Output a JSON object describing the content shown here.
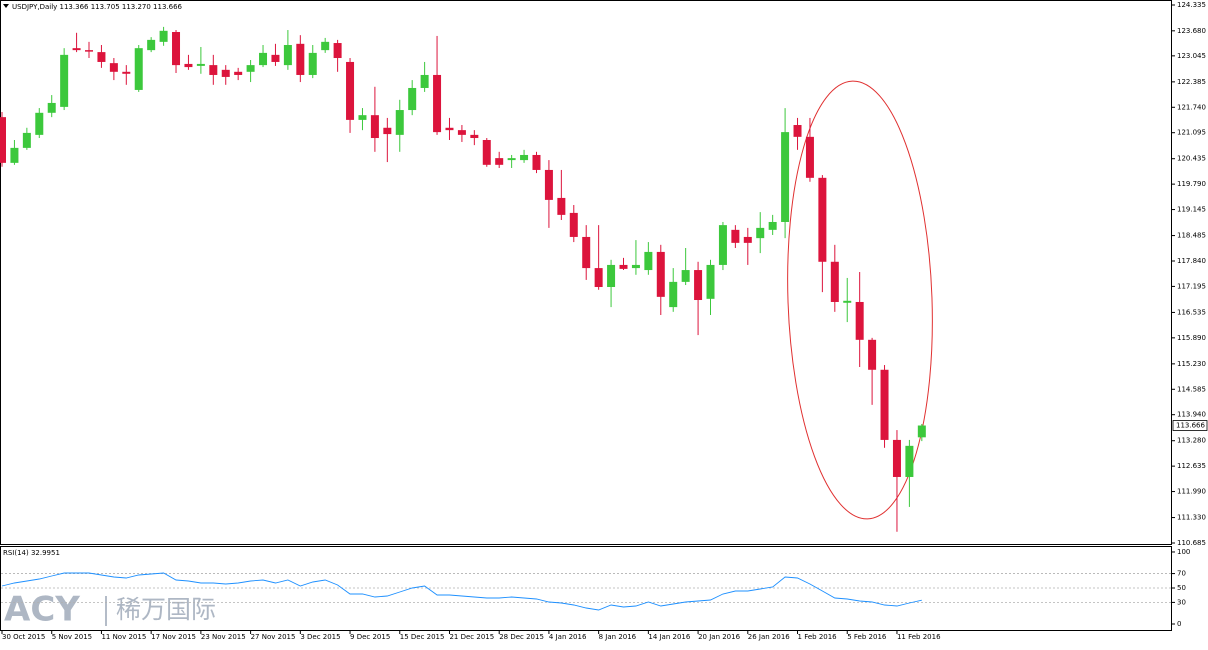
{
  "chart_data": [
    {
      "type": "candlestick",
      "title": "USDJPY,Daily  113.366 113.705 113.270 113.666",
      "up_color": "#3cc83c",
      "down_color": "#dc143c",
      "ylim": [
        110.634,
        124.462
      ],
      "yticks": [
        124.335,
        {
          "value": 123.68,
          "label": "123.680"
        },
        123.045,
        122.385,
        {
          "value": 121.74,
          "label": "121.740"
        },
        121.095,
        120.435,
        {
          "value": 119.79,
          "label": "119.790"
        },
        119.145,
        118.485,
        {
          "value": 117.84,
          "label": "117.840"
        },
        117.195,
        116.535,
        {
          "value": 115.89,
          "label": "115.890"
        },
        {
          "value": 115.23,
          "label": "115.230"
        },
        114.585,
        {
          "value": 113.94,
          "label": "113.940"
        },
        {
          "value": 113.28,
          "label": "113.280"
        },
        112.635,
        {
          "value": 111.99,
          "label": "111.990"
        },
        {
          "value": 111.33,
          "label": "111.330"
        },
        110.685
      ],
      "last_price": {
        "value": 113.666,
        "label": "113.666"
      },
      "open": [
        121.49,
        120.33,
        120.71,
        121.04,
        121.6,
        121.75,
        123.24,
        123.19,
        123.14,
        122.86,
        122.64,
        122.18,
        123.19,
        123.4,
        123.65,
        122.84,
        122.79,
        122.81,
        122.69,
        122.64,
        122.64,
        122.81,
        123.07,
        122.81,
        123.35,
        122.56,
        123.19,
        123.37,
        122.89,
        121.42,
        121.54,
        121.22,
        121.04,
        121.67,
        122.23,
        122.56,
        121.22,
        121.16,
        121.04,
        120.91,
        120.45,
        120.4,
        120.4,
        120.53,
        120.15,
        119.44,
        119.06,
        118.45,
        117.66,
        117.18,
        117.74,
        117.66,
        117.61,
        118.07,
        116.67,
        117.31,
        117.61,
        116.88,
        117.74,
        118.63,
        118.45,
        118.42,
        118.63,
        118.83,
        121.29,
        120.99,
        119.95,
        117.82,
        116.78,
        116.8,
        115.84,
        115.08,
        113.3,
        112.36,
        113.366
      ],
      "high": [
        121.62,
        120.91,
        121.22,
        121.72,
        122.05,
        123.24,
        123.63,
        123.4,
        123.32,
        122.99,
        122.81,
        123.32,
        123.52,
        123.78,
        123.7,
        123.07,
        123.27,
        123.07,
        122.81,
        122.74,
        122.94,
        123.32,
        123.35,
        123.7,
        123.57,
        123.32,
        123.5,
        123.45,
        122.99,
        121.72,
        122.26,
        121.47,
        121.93,
        122.43,
        122.89,
        123.55,
        121.47,
        121.29,
        121.16,
        120.96,
        120.61,
        120.53,
        120.66,
        120.61,
        120.4,
        120.15,
        119.26,
        118.75,
        118.75,
        117.87,
        117.92,
        118.37,
        118.32,
        118.25,
        117.66,
        118.17,
        117.82,
        117.87,
        118.83,
        118.75,
        118.68,
        119.08,
        119.01,
        121.72,
        121.47,
        121.47,
        120.02,
        118.25,
        117.41,
        117.56,
        115.89,
        115.2,
        113.55,
        113.3,
        113.705
      ],
      "low": [
        120.23,
        120.28,
        120.66,
        120.96,
        121.49,
        121.67,
        123.14,
        122.99,
        122.74,
        122.43,
        122.31,
        122.13,
        123.14,
        123.3,
        122.61,
        122.69,
        122.59,
        122.31,
        122.31,
        122.43,
        122.38,
        122.76,
        122.79,
        122.69,
        122.38,
        122.48,
        123.12,
        122.64,
        121.09,
        121.16,
        120.61,
        120.35,
        120.61,
        121.54,
        122.13,
        121.04,
        120.91,
        120.86,
        120.78,
        120.23,
        120.2,
        120.2,
        120.33,
        120.07,
        118.68,
        118.88,
        118.32,
        117.36,
        117.11,
        116.67,
        117.61,
        117.49,
        117.49,
        116.47,
        116.55,
        117.23,
        115.96,
        116.47,
        117.61,
        118.17,
        117.74,
        118.04,
        118.5,
        118.42,
        120.66,
        119.85,
        117.05,
        116.55,
        116.29,
        115.15,
        114.19,
        113.1,
        110.97,
        111.6,
        113.27
      ],
      "close": [
        120.33,
        120.71,
        121.09,
        121.6,
        121.85,
        123.07,
        123.19,
        123.17,
        122.89,
        122.64,
        122.59,
        123.24,
        123.45,
        123.68,
        122.81,
        122.76,
        122.84,
        122.56,
        122.51,
        122.56,
        122.81,
        123.12,
        122.89,
        123.32,
        122.56,
        123.12,
        123.4,
        122.99,
        121.42,
        121.54,
        120.96,
        121.06,
        121.67,
        122.23,
        122.56,
        121.11,
        121.16,
        121.04,
        120.96,
        120.28,
        120.28,
        120.45,
        120.53,
        120.15,
        119.39,
        119.01,
        118.45,
        117.66,
        117.18,
        117.74,
        117.64,
        117.74,
        118.07,
        116.93,
        117.31,
        117.61,
        116.85,
        117.74,
        118.75,
        118.3,
        118.3,
        118.68,
        118.83,
        121.11,
        120.99,
        119.95,
        117.82,
        116.8,
        116.83,
        115.84,
        115.08,
        113.3,
        112.36,
        113.15,
        113.666
      ]
    },
    {
      "type": "line",
      "title": "RSI(14) 32.9951",
      "color": "#1e90ff",
      "ylim": [
        -9.7,
        106.9
      ],
      "yticks": [
        100,
        70,
        50,
        30,
        0
      ],
      "levels": [
        70,
        50,
        30
      ],
      "categories": [
        "30 Oct 2015",
        null,
        null,
        null,
        "5 Nov 2015",
        null,
        null,
        null,
        "11 Nov 2015",
        null,
        null,
        null,
        "17 Nov 2015",
        null,
        null,
        null,
        "23 Nov 2015",
        null,
        null,
        null,
        "27 Nov 2015",
        null,
        null,
        null,
        "3 Dec 2015",
        null,
        null,
        null,
        "9 Dec 2015",
        null,
        null,
        null,
        "15 Dec 2015",
        null,
        null,
        null,
        "21 Dec 2015",
        null,
        null,
        null,
        "28 Dec 2015",
        null,
        null,
        null,
        "4 Jan 2016",
        null,
        null,
        null,
        "8 Jan 2016",
        null,
        null,
        null,
        "14 Jan 2016",
        null,
        null,
        null,
        "20 Jan 2016",
        null,
        null,
        null,
        "26 Jan 2016",
        null,
        null,
        null,
        "1 Feb 2016",
        null,
        null,
        null,
        "5 Feb 2016",
        null,
        null,
        null,
        "11 Feb 2016",
        null,
        null
      ],
      "values": [
        52.8,
        56.9,
        59.7,
        62.5,
        66.6,
        70.8,
        70.8,
        70.8,
        68.0,
        65.3,
        63.9,
        68.0,
        69.4,
        70.8,
        61.1,
        59.7,
        56.9,
        56.9,
        55.5,
        56.9,
        59.7,
        61.1,
        56.9,
        61.1,
        52.8,
        58.3,
        61.1,
        54.2,
        41.7,
        41.7,
        37.5,
        38.9,
        44.4,
        50.0,
        52.8,
        40.3,
        40.3,
        38.9,
        37.5,
        36.1,
        36.1,
        37.5,
        36.1,
        34.7,
        30.6,
        29.2,
        26.4,
        22.2,
        19.5,
        26.4,
        23.6,
        25.0,
        30.6,
        25.0,
        27.8,
        30.6,
        31.9,
        33.3,
        41.7,
        45.8,
        45.8,
        48.6,
        51.4,
        65.3,
        63.9,
        55.5,
        45.8,
        36.1,
        34.7,
        31.9,
        30.6,
        26.4,
        25.0,
        29.2,
        32.9951
      ]
    }
  ],
  "watermark": {
    "brand": "ACY",
    "brand_cn": "稀万国际"
  }
}
